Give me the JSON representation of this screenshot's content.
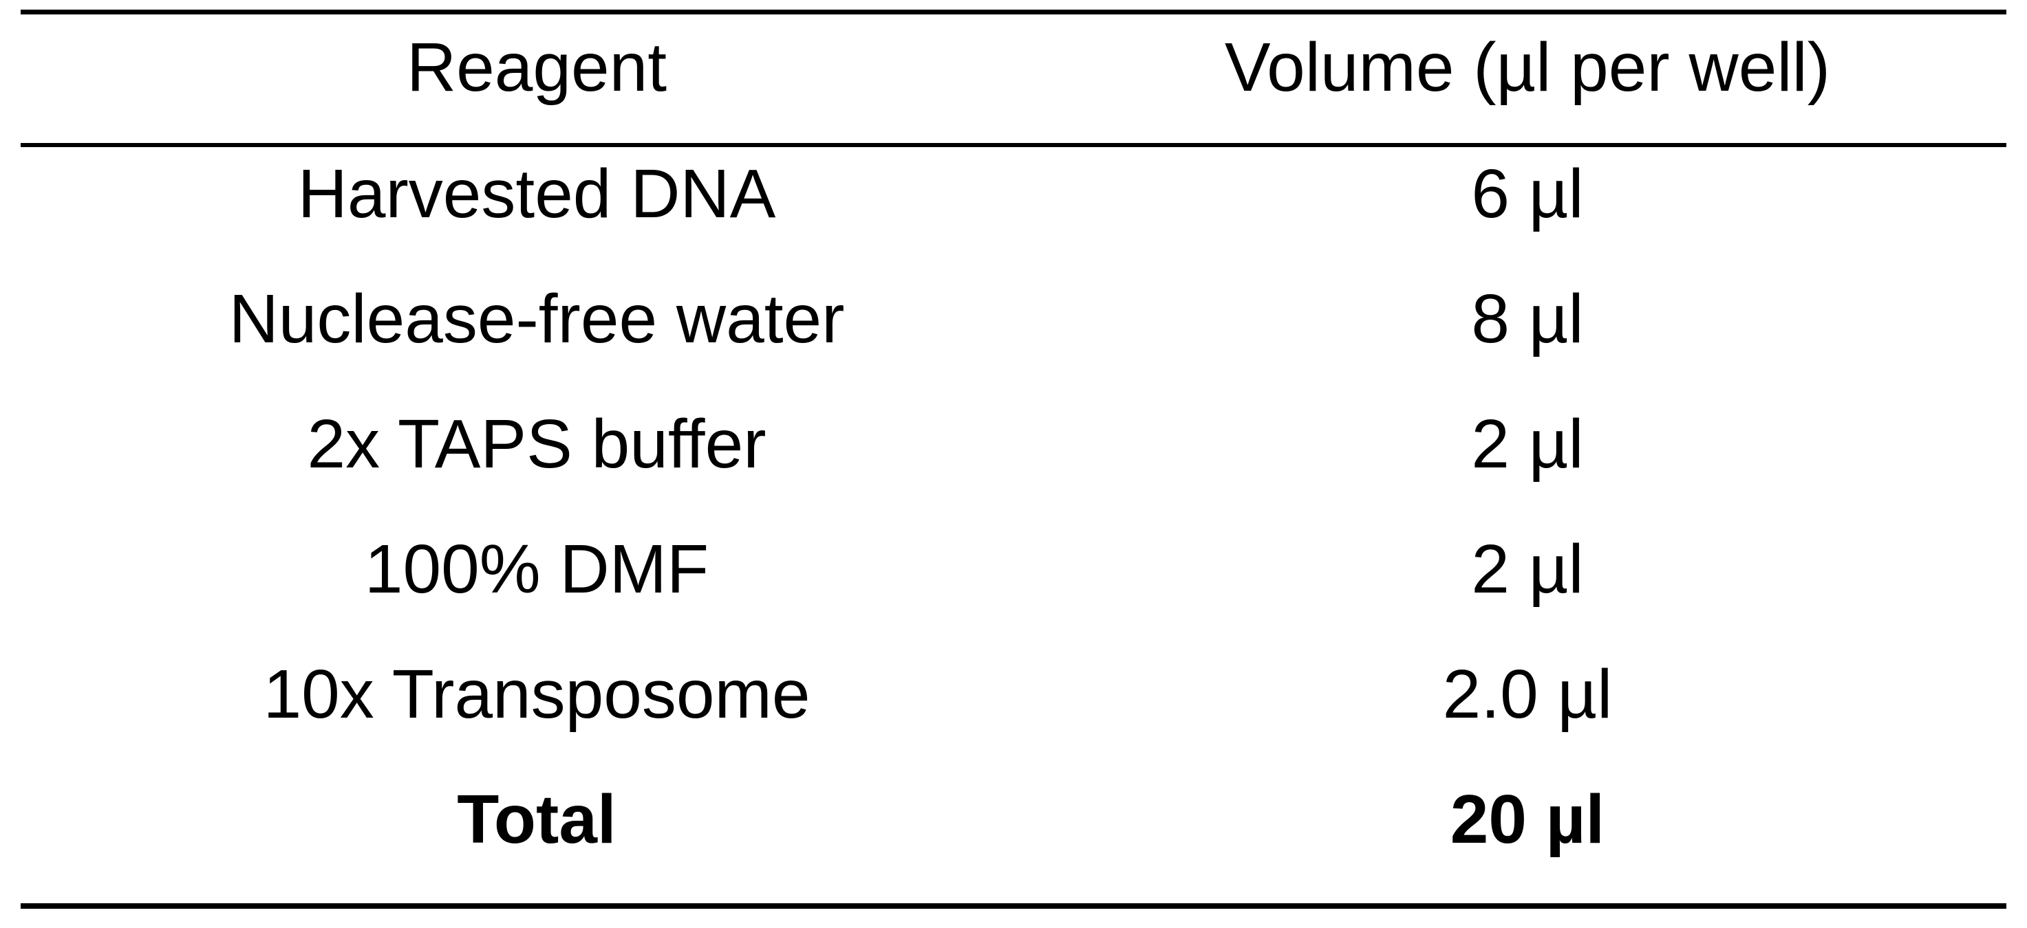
{
  "table": {
    "headers": {
      "reagent": "Reagent",
      "volume": "Volume (µl per well)"
    },
    "rows": [
      {
        "reagent": "Harvested DNA",
        "volume": "6 µl"
      },
      {
        "reagent": "Nuclease-free water",
        "volume": "8 µl"
      },
      {
        "reagent": "2x TAPS buffer",
        "volume": "2 µl"
      },
      {
        "reagent": "100% DMF",
        "volume": "2 µl"
      },
      {
        "reagent": "10x Transposome",
        "volume": "2.0 µl"
      }
    ],
    "total": {
      "reagent": "Total",
      "volume": "20 µl"
    }
  }
}
